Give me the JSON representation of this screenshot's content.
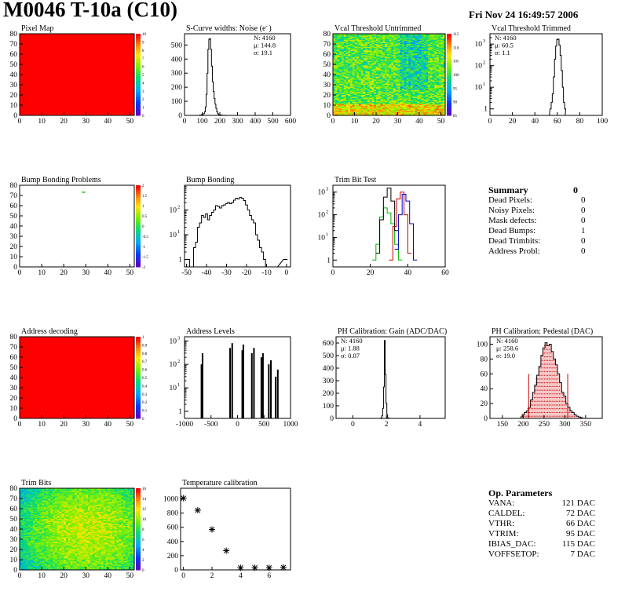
{
  "header": {
    "title": "M0046 T-10a (C10)",
    "date": "Fri Nov 24 16:49:57 2006"
  },
  "colors": {
    "axis": "#000000",
    "map_fill": "#ff0000",
    "dot": "#00c800",
    "trim_green": "#00b400",
    "trim_red": "#c80000",
    "trim_blue": "#0000c8",
    "pedestal_red": "#c80000"
  },
  "panels": {
    "pixel_map": {
      "title": "Pixel Map",
      "x_ticks": [
        "0",
        "10",
        "20",
        "30",
        "40",
        "50"
      ],
      "y_ticks": [
        "0",
        "10",
        "20",
        "30",
        "40",
        "50",
        "60",
        "70",
        "80"
      ],
      "z_ticks": [
        "0",
        "1",
        "2",
        "3",
        "4",
        "5",
        "6",
        "7",
        "8",
        "9",
        "10"
      ]
    },
    "noise": {
      "title": "S-Curve widths: Noise (e",
      "title_sup": "-",
      "title_end": ")",
      "x_ticks": [
        "0",
        "100",
        "200",
        "300",
        "400",
        "500",
        "600"
      ],
      "y_ticks": [
        "0",
        "100",
        "200",
        "300",
        "400",
        "500"
      ],
      "stats": [
        "N: 4160",
        "μ: 144.8",
        "σ: 19.1"
      ]
    },
    "vcal_untrimmed": {
      "title": "Vcal Threshold Untrimmed",
      "x_ticks": [
        "0",
        "10",
        "20",
        "30",
        "40",
        "50"
      ],
      "y_ticks": [
        "0",
        "10",
        "20",
        "30",
        "40",
        "50",
        "60",
        "70",
        "80"
      ],
      "z_ticks": [
        "85",
        "90",
        "95",
        "100",
        "105",
        "110",
        "115"
      ]
    },
    "vcal_trimmed": {
      "title": "Vcal Threshold Trimmed",
      "x_ticks": [
        "0",
        "20",
        "40",
        "60",
        "80",
        "100"
      ],
      "stats": [
        "N: 4160",
        "μ: 60.5",
        "σ:  1.1"
      ]
    },
    "bump_problems": {
      "title": "Bump Bonding Problems",
      "x_ticks": [
        "0",
        "10",
        "20",
        "30",
        "40",
        "50"
      ],
      "y_ticks": [
        "0",
        "10",
        "20",
        "30",
        "40",
        "50",
        "60",
        "70",
        "80"
      ],
      "z_ticks": [
        "-2",
        "-1.5",
        "-1",
        "-0.5",
        "0",
        "0.5",
        "1",
        "1.5",
        "2"
      ]
    },
    "bump_bonding": {
      "title": "Bump Bonding",
      "x_ticks": [
        "-50",
        "-40",
        "-30",
        "-20",
        "-10",
        "0"
      ]
    },
    "trim_bit": {
      "title": "Trim Bit Test",
      "x_ticks": [
        "0",
        "20",
        "40",
        "60"
      ]
    },
    "address_decoding": {
      "title": "Address decoding",
      "x_ticks": [
        "0",
        "10",
        "20",
        "30",
        "40",
        "50"
      ],
      "y_ticks": [
        "0",
        "10",
        "20",
        "30",
        "40",
        "50",
        "60",
        "70",
        "80"
      ],
      "z_ticks": [
        "0",
        "0.1",
        "0.2",
        "0.3",
        "0.4",
        "0.5",
        "0.6",
        "0.7",
        "0.8",
        "0.9",
        "1"
      ]
    },
    "address_levels": {
      "title": "Address Levels",
      "x_ticks": [
        "-1000",
        "-500",
        "0",
        "500",
        "1000"
      ]
    },
    "ph_gain": {
      "title": "PH Calibration: Gain (ADC/DAC)",
      "x_ticks": [
        "0",
        "2",
        "4"
      ],
      "y_ticks": [
        "0",
        "100",
        "200",
        "300",
        "400",
        "500",
        "600"
      ],
      "stats": [
        "N: 4160",
        "μ: 1.88",
        "σ: 0.07"
      ]
    },
    "ph_pedestal": {
      "title": "PH Calibration: Pedestal (DAC)",
      "x_ticks": [
        "150",
        "200",
        "250",
        "300",
        "350"
      ],
      "y_ticks": [
        "0",
        "20",
        "40",
        "60",
        "80",
        "100"
      ],
      "stats": [
        "N: 4160",
        "μ: 258.6",
        "σ: 19.0"
      ]
    },
    "trim_bits": {
      "title": "Trim Bits",
      "x_ticks": [
        "0",
        "10",
        "20",
        "30",
        "40",
        "50"
      ],
      "y_ticks": [
        "0",
        "10",
        "20",
        "30",
        "40",
        "50",
        "60",
        "70",
        "80"
      ],
      "z_ticks": [
        "0",
        "2",
        "4",
        "6",
        "8",
        "10",
        "12",
        "14",
        "16"
      ]
    },
    "temperature": {
      "title": "Temperature calibration",
      "x_ticks": [
        "0",
        "2",
        "4",
        "6"
      ],
      "y_ticks": [
        "0",
        "200",
        "400",
        "600",
        "800",
        "1000"
      ]
    }
  },
  "summary": {
    "title": "Summary",
    "total": "0",
    "rows": [
      {
        "label": "Dead Pixels:",
        "value": "0"
      },
      {
        "label": "Noisy Pixels:",
        "value": "0"
      },
      {
        "label": "Mask defects:",
        "value": "0"
      },
      {
        "label": "Dead Bumps:",
        "value": "1"
      },
      {
        "label": "Dead Trimbits:",
        "value": "0"
      },
      {
        "label": "Address Probl:",
        "value": "0"
      }
    ]
  },
  "op_params": {
    "title": "Op. Parameters",
    "rows": [
      {
        "label": "VANA:",
        "value": "121 DAC"
      },
      {
        "label": "CALDEL:",
        "value": "72 DAC"
      },
      {
        "label": "VTHR:",
        "value": "66 DAC"
      },
      {
        "label": "VTRIM:",
        "value": "95 DAC"
      },
      {
        "label": "IBIAS_DAC:",
        "value": "115 DAC"
      },
      {
        "label": "VOFFSETOP:",
        "value": "7 DAC"
      }
    ]
  },
  "chart_data": [
    {
      "id": "pixel_map",
      "type": "heatmap",
      "title": "Pixel Map",
      "xlim": [
        0,
        52
      ],
      "ylim": [
        0,
        80
      ],
      "zlim": [
        0,
        10
      ],
      "uniform_value": 10
    },
    {
      "id": "noise",
      "type": "line",
      "title": "S-Curve widths: Noise (e-)",
      "xlim": [
        0,
        600
      ],
      "ylim": [
        0,
        580
      ],
      "x": [
        80,
        90,
        100,
        110,
        115,
        120,
        125,
        130,
        135,
        140,
        145,
        150,
        155,
        160,
        165,
        170,
        175,
        180,
        185,
        190,
        195,
        200,
        210,
        220,
        230,
        250,
        280
      ],
      "y": [
        0,
        2,
        5,
        12,
        25,
        60,
        150,
        300,
        470,
        540,
        545,
        470,
        350,
        240,
        170,
        120,
        80,
        50,
        25,
        12,
        5,
        3,
        2,
        1,
        1,
        0,
        0
      ]
    },
    {
      "id": "vcal_untrimmed",
      "type": "heatmap",
      "title": "Vcal Threshold Untrimmed",
      "xlim": [
        0,
        52
      ],
      "ylim": [
        0,
        80
      ],
      "zlim": [
        82,
        118
      ]
    },
    {
      "id": "vcal_trimmed",
      "type": "line",
      "title": "Vcal Threshold Trimmed",
      "log_y": true,
      "xlim": [
        0,
        100
      ],
      "ylim": [
        0.5,
        3000
      ],
      "x": [
        52,
        54,
        55,
        56,
        57,
        58,
        59,
        60,
        61,
        62,
        63,
        64,
        65,
        66,
        67,
        68
      ],
      "y": [
        0.5,
        1,
        2,
        5,
        30,
        200,
        800,
        1600,
        1700,
        900,
        300,
        60,
        10,
        2,
        1,
        0.5
      ]
    },
    {
      "id": "bump_problems",
      "type": "heatmap",
      "title": "Bump Bonding Problems",
      "xlim": [
        0,
        52
      ],
      "ylim": [
        0,
        80
      ],
      "zlim": [
        -2,
        2
      ],
      "points": [
        {
          "x": 29,
          "y": 73,
          "z": 1
        }
      ]
    },
    {
      "id": "bump_bonding",
      "type": "line",
      "title": "Bump Bonding",
      "log_y": true,
      "xlim": [
        -51,
        2
      ],
      "ylim": [
        0.5,
        1000
      ],
      "x": [
        -49,
        -48,
        -47,
        -46,
        -45,
        -44,
        -43,
        -42,
        -41,
        -40,
        -39,
        -38,
        -37,
        -36,
        -35,
        -34,
        -33,
        -32,
        -31,
        -30,
        -29,
        -28,
        -27,
        -26,
        -25,
        -24,
        -23,
        -22,
        -21,
        -20,
        -19,
        -18,
        -17,
        -16,
        -15,
        -14,
        -13,
        -12,
        -11,
        -10,
        -9,
        -8,
        -1,
        0
      ],
      "y": [
        1,
        0.5,
        0.5,
        3,
        5,
        20,
        30,
        60,
        50,
        70,
        40,
        60,
        80,
        100,
        150,
        140,
        120,
        150,
        160,
        180,
        200,
        180,
        200,
        250,
        300,
        280,
        320,
        300,
        240,
        160,
        100,
        60,
        40,
        30,
        10,
        6,
        3,
        2,
        1,
        0.5,
        0.5,
        0.5,
        1,
        1
      ]
    },
    {
      "id": "trim_bit",
      "type": "line",
      "title": "Trim Bit Test",
      "log_y": true,
      "xlim": [
        0,
        60
      ],
      "ylim": [
        0.5,
        2000
      ],
      "series": [
        {
          "color": "green",
          "x": [
            22,
            24,
            26,
            28,
            30,
            32,
            34,
            36
          ],
          "y": [
            1,
            5,
            80,
            200,
            120,
            40,
            5,
            1
          ]
        },
        {
          "color": "black",
          "x": [
            24,
            26,
            28,
            30,
            32,
            34
          ],
          "y": [
            2,
            60,
            600,
            1500,
            400,
            20
          ]
        },
        {
          "color": "red",
          "x": [
            31,
            33,
            35,
            37,
            39,
            41
          ],
          "y": [
            1,
            30,
            500,
            1000,
            100,
            2
          ]
        },
        {
          "color": "blue",
          "x": [
            34,
            36,
            38,
            40,
            42,
            44
          ],
          "y": [
            3,
            100,
            800,
            400,
            40,
            1
          ]
        }
      ]
    },
    {
      "id": "address_decoding",
      "type": "heatmap",
      "title": "Address decoding",
      "xlim": [
        0,
        52
      ],
      "ylim": [
        0,
        80
      ],
      "zlim": [
        0,
        1
      ],
      "uniform_value": 1
    },
    {
      "id": "address_levels",
      "type": "bar",
      "title": "Address Levels",
      "log_y": true,
      "xlim": [
        -1000,
        1000
      ],
      "ylim": [
        0.5,
        1500
      ],
      "x": [
        -680,
        -660,
        -140,
        -100,
        90,
        110,
        270,
        310,
        450,
        480,
        590,
        630,
        720,
        760
      ],
      "y": [
        100,
        300,
        500,
        800,
        400,
        700,
        300,
        500,
        200,
        300,
        100,
        150,
        30,
        60
      ]
    },
    {
      "id": "ph_gain",
      "type": "line",
      "title": "PH Calibration: Gain (ADC/DAC)",
      "xlim": [
        -1,
        5.5
      ],
      "ylim": [
        0,
        650
      ],
      "x": [
        1.6,
        1.7,
        1.75,
        1.8,
        1.85,
        1.9,
        1.95,
        2.0,
        2.05,
        2.1,
        2.2
      ],
      "y": [
        0,
        5,
        20,
        80,
        250,
        620,
        350,
        120,
        30,
        5,
        0
      ]
    },
    {
      "id": "ph_pedestal",
      "type": "line",
      "title": "PH Calibration: Pedestal (DAC)",
      "xlim": [
        120,
        390
      ],
      "ylim": [
        0,
        110
      ],
      "x": [
        195,
        200,
        205,
        210,
        215,
        220,
        225,
        230,
        235,
        240,
        245,
        250,
        255,
        260,
        265,
        270,
        275,
        280,
        285,
        290,
        295,
        300,
        305,
        310,
        315,
        320,
        325,
        330,
        335,
        340,
        345
      ],
      "y": [
        2,
        5,
        8,
        10,
        15,
        25,
        35,
        45,
        58,
        70,
        85,
        95,
        102,
        98,
        100,
        90,
        80,
        72,
        60,
        48,
        35,
        30,
        20,
        15,
        10,
        8,
        5,
        3,
        2,
        1,
        0
      ]
    },
    {
      "id": "trim_bits",
      "type": "heatmap",
      "title": "Trim Bits",
      "xlim": [
        0,
        52
      ],
      "ylim": [
        0,
        80
      ],
      "zlim": [
        0,
        16
      ]
    },
    {
      "id": "temperature",
      "type": "scatter",
      "title": "Temperature calibration",
      "xlim": [
        -0.2,
        7.5
      ],
      "ylim": [
        0,
        1150
      ],
      "x": [
        0,
        1,
        2,
        3,
        4,
        5,
        6,
        7
      ],
      "y": [
        1010,
        840,
        570,
        270,
        30,
        30,
        30,
        35
      ]
    }
  ]
}
